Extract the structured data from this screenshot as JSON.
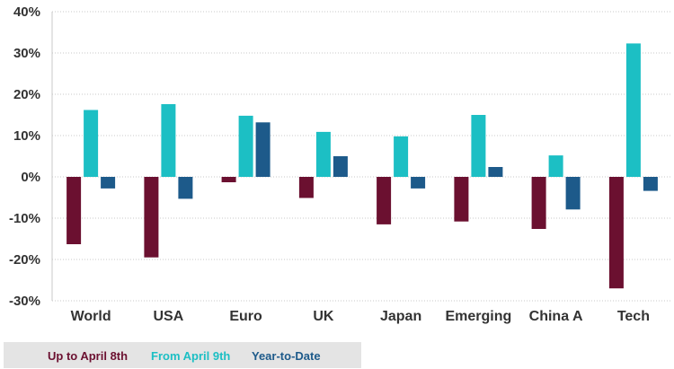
{
  "chart_data": {
    "type": "bar",
    "title": "",
    "xlabel": "",
    "ylabel": "",
    "ylim": [
      -30,
      40
    ],
    "ytick_values": [
      -30,
      -20,
      -10,
      0,
      10,
      20,
      30,
      40
    ],
    "ytick_labels": [
      "-30%",
      "-20%",
      "-10%",
      "0%",
      "10%",
      "20%",
      "30%",
      "40%"
    ],
    "grid": true,
    "legend_position": "bottom-left",
    "categories": [
      "World",
      "USA",
      "Euro",
      "UK",
      "Japan",
      "Emerging",
      "China A",
      "Tech"
    ],
    "series": [
      {
        "name": "Up to April 8th",
        "color": "#6b1030",
        "values": [
          -16.3,
          -19.5,
          -1.3,
          -5.1,
          -11.5,
          -10.8,
          -12.6,
          -27.0
        ]
      },
      {
        "name": "From April 9th",
        "color": "#1cbfc4",
        "values": [
          16.2,
          17.6,
          14.8,
          10.9,
          9.8,
          15.0,
          5.2,
          32.3
        ]
      },
      {
        "name": "Year-to-Date",
        "color": "#1d5a8a",
        "values": [
          -2.8,
          -5.3,
          13.2,
          5.0,
          -2.8,
          2.4,
          -7.9,
          -3.4
        ]
      }
    ]
  }
}
